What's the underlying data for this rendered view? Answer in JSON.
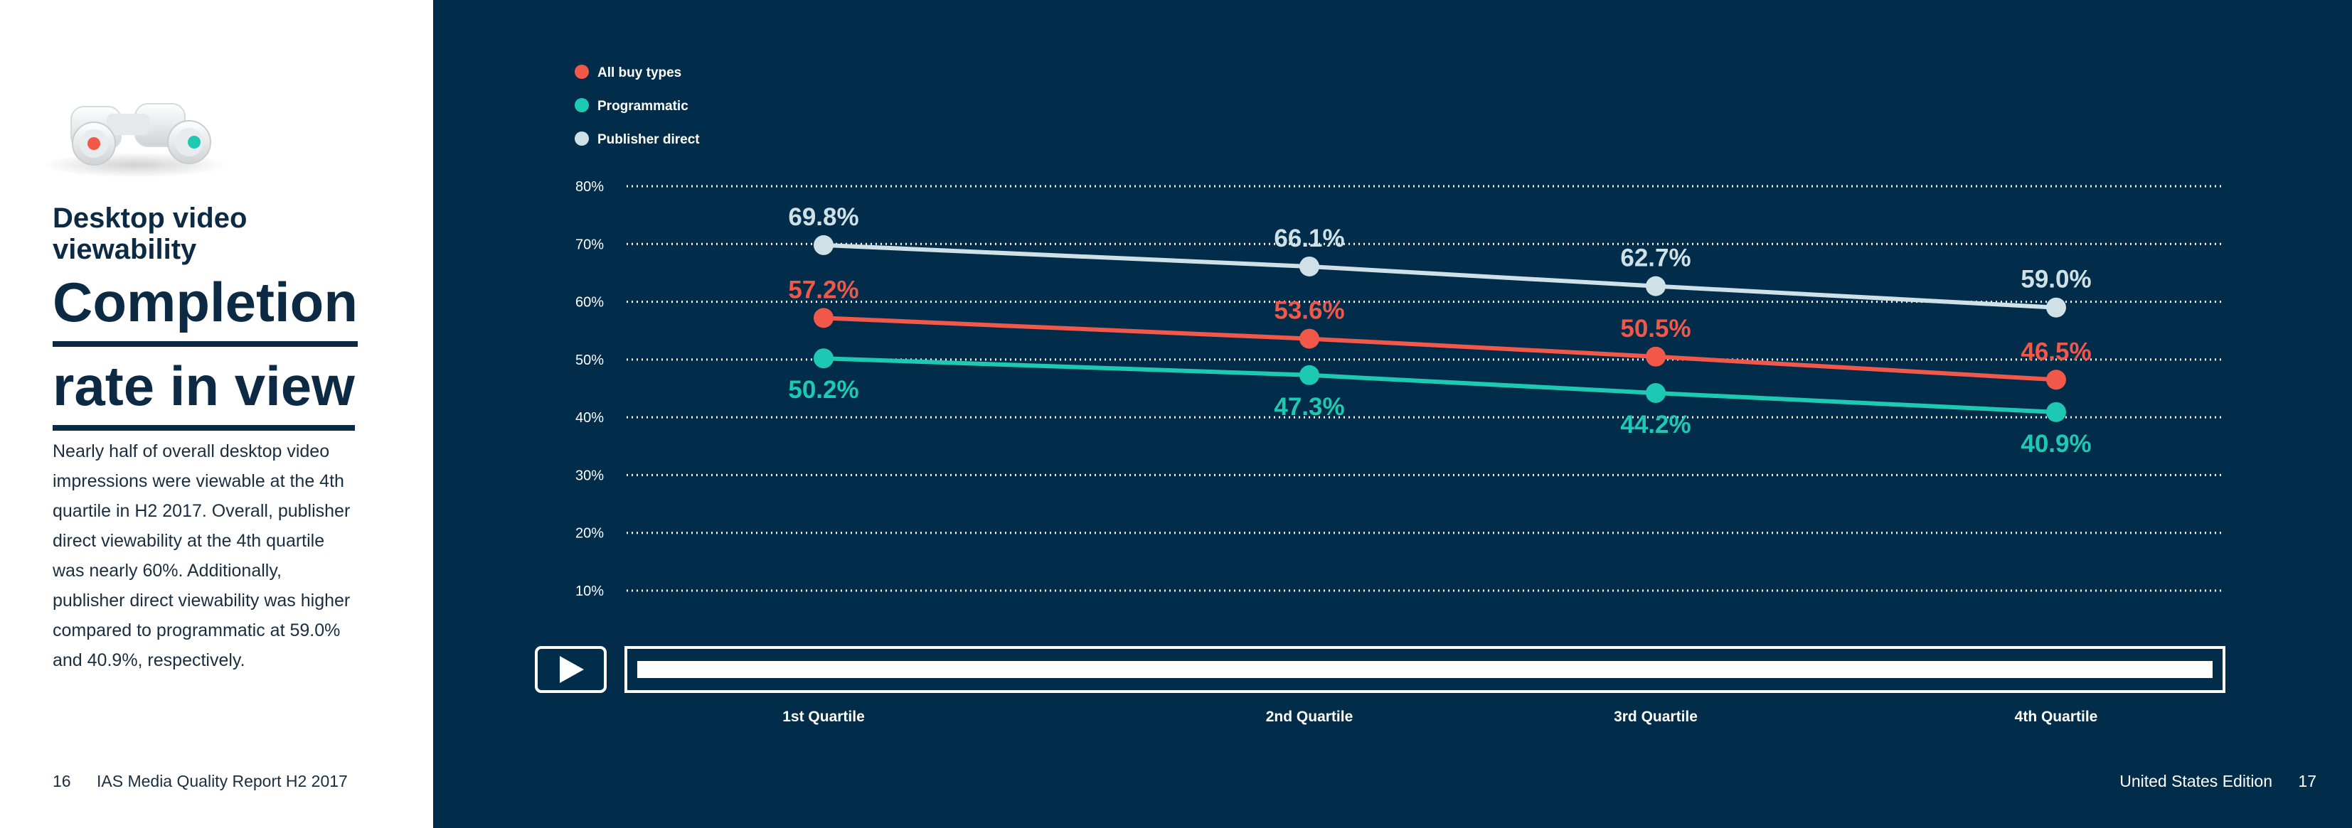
{
  "left": {
    "kicker": "Desktop video viewability",
    "title_line1": "Completion",
    "title_line2": "rate in view",
    "body": "Nearly half of overall desktop video impressions were viewable at the 4th quartile in H2 2017. Overall, publisher direct viewability at the 4th quartile was nearly 60%. Additionally, publisher direct viewability was higher compared to programmatic at 59.0% and 40.9%, respectively."
  },
  "footer": {
    "left_page": "16",
    "left_text": "IAS Media Quality Report H2 2017",
    "right_text": "United States Edition",
    "right_page": "17"
  },
  "colors": {
    "background": "#012d4a",
    "all_buy_types": "#f2584a",
    "programmatic": "#1ec9b4",
    "publisher_direct": "#cfe1e6"
  },
  "chart_data": {
    "type": "line",
    "categories": [
      "1st Quartile",
      "2nd Quartile",
      "3rd Quartile",
      "4th Quartile"
    ],
    "y_ticks": [
      "80%",
      "70%",
      "60%",
      "50%",
      "40%",
      "30%",
      "20%",
      "10%"
    ],
    "y_tick_values": [
      80,
      70,
      60,
      50,
      40,
      30,
      20,
      10
    ],
    "ylim": [
      10,
      80
    ],
    "grid": true,
    "legend_position": "top-left",
    "series": [
      {
        "name": "All buy types",
        "color_key": "all_buy_types",
        "values": [
          57.2,
          53.6,
          50.5,
          46.5
        ],
        "labels": [
          "57.2%",
          "53.6%",
          "50.5%",
          "46.5%"
        ]
      },
      {
        "name": "Programmatic",
        "color_key": "programmatic",
        "values": [
          50.2,
          47.3,
          44.2,
          40.9
        ],
        "labels": [
          "50.2%",
          "47.3%",
          "44.2%",
          "40.9%"
        ]
      },
      {
        "name": "Publisher direct",
        "color_key": "publisher_direct",
        "values": [
          69.8,
          66.1,
          62.7,
          59.0
        ],
        "labels": [
          "69.8%",
          "66.1%",
          "62.7%",
          "59.0%"
        ]
      }
    ]
  }
}
